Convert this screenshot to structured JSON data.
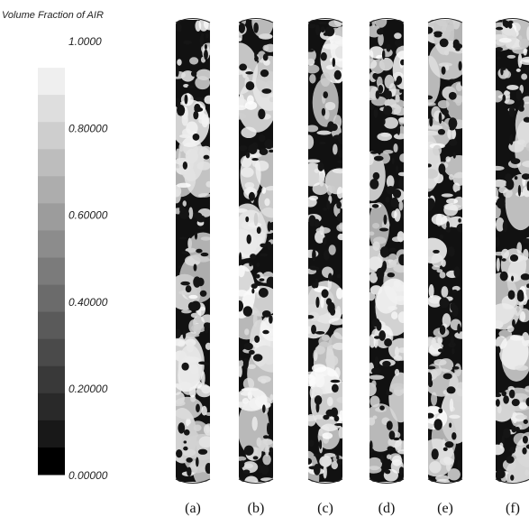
{
  "colorbar": {
    "title": "Volume Fraction of AIR",
    "ticks": [
      "1.0000",
      "0.80000",
      "0.60000",
      "0.40000",
      "0.20000",
      "0.00000"
    ]
  },
  "panels": [
    "(a)",
    "(b)",
    "(c)",
    "(d)",
    "(e)",
    "(f)"
  ]
}
